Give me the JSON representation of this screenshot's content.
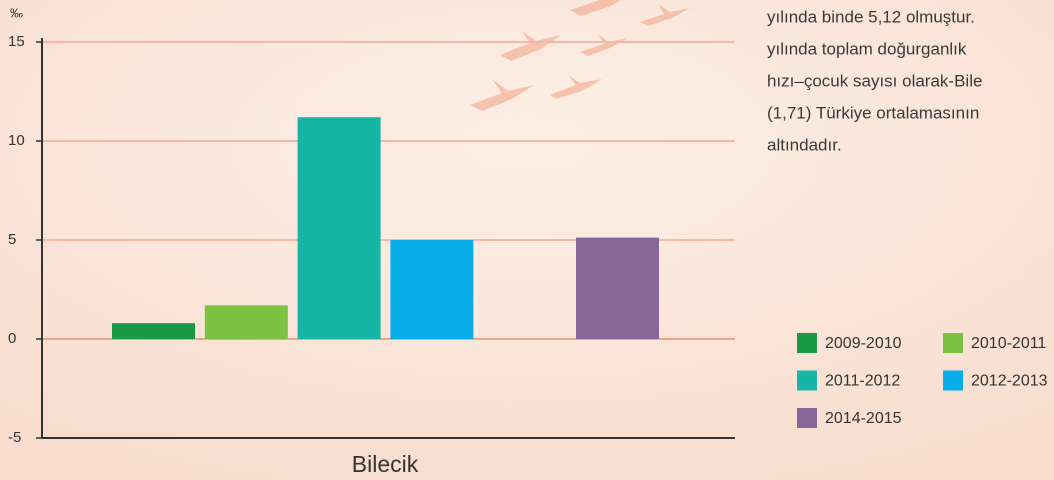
{
  "chart_data": {
    "type": "bar",
    "y_label": "‰",
    "categories": [
      "Bilecik"
    ],
    "series": [
      {
        "name": "2009-2010",
        "color": "#1b9a45",
        "values": [
          0.8
        ]
      },
      {
        "name": "2010-2011",
        "color": "#7cc242",
        "values": [
          1.7
        ]
      },
      {
        "name": "2011-2012",
        "color": "#16b5a6",
        "values": [
          11.2
        ]
      },
      {
        "name": "2012-2013",
        "color": "#08aeea",
        "values": [
          5
        ]
      },
      {
        "name": "2014-2015",
        "color": "#88669a",
        "values": [
          5.12
        ]
      }
    ],
    "ylim": [
      -5,
      15
    ],
    "yticks": [
      -5,
      0,
      5,
      10,
      15
    ],
    "grid": true
  },
  "text_lines": [
    "yılında binde 5,12 olmuştur.",
    "yılında toplam doğurganlık",
    "hızı–çocuk sayısı olarak-Bile",
    "(1,71) Türkiye ortalamasının",
    "altındadır."
  ]
}
